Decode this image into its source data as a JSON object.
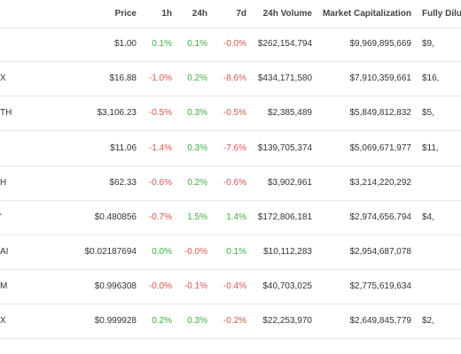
{
  "table": {
    "headers": {
      "price": "Price",
      "h1": "1h",
      "h24": "24h",
      "d7": "7d",
      "volume": "24h Volume",
      "mcap": "Market Capitalization",
      "fdv": "Fully Dilute"
    },
    "rows": [
      {
        "name": "",
        "price": "$1.00",
        "h1": "0.1%",
        "h24": "0.1%",
        "d7": "-0.0%",
        "volume": "$262,154,794",
        "mcap": "$9,969,895,669",
        "fdv": "$9,"
      },
      {
        "name": "X",
        "price": "$16.88",
        "h1": "-1.0%",
        "h24": "0.2%",
        "d7": "-8.6%",
        "volume": "$434,171,580",
        "mcap": "$7,910,359,661",
        "fdv": "$16,"
      },
      {
        "name": "TH",
        "price": "$3,106.23",
        "h1": "-0.5%",
        "h24": "0.3%",
        "d7": "-0.5%",
        "volume": "$2,385,489",
        "mcap": "$5,849,812,832",
        "fdv": "$5,"
      },
      {
        "name": "",
        "price": "$11.06",
        "h1": "-1.4%",
        "h24": "0.3%",
        "d7": "-7.6%",
        "volume": "$139,705,374",
        "mcap": "$5,069,671,977",
        "fdv": "$11,"
      },
      {
        "name": "H",
        "price": "$62.33",
        "h1": "-0.6%",
        "h24": "0.2%",
        "d7": "-0.6%",
        "volume": "$3,902,961",
        "mcap": "$3,214,220,292",
        "fdv": ""
      },
      {
        "name": "'",
        "price": "$0.480856",
        "h1": "-0.7%",
        "h24": "1.5%",
        "d7": "1.4%",
        "volume": "$172,806,181",
        "mcap": "$2,974,656,794",
        "fdv": "$4,"
      },
      {
        "name": "AI",
        "price": "$0.02187694",
        "h1": "0.0%",
        "h24": "-0.0%",
        "d7": "0.1%",
        "volume": "$10,112,283",
        "mcap": "$2,954,687,078",
        "fdv": ""
      },
      {
        "name": "M",
        "price": "$0.996308",
        "h1": "-0.0%",
        "h24": "-0.1%",
        "d7": "-0.4%",
        "volume": "$40,703,025",
        "mcap": "$2,775,619,634",
        "fdv": ""
      },
      {
        "name": "X",
        "price": "$0.999928",
        "h1": "0.2%",
        "h24": "0.3%",
        "d7": "-0.2%",
        "volume": "$22,253,970",
        "mcap": "$2,649,845,779",
        "fdv": "$2,"
      }
    ]
  },
  "colors": {
    "positive": "#3fae3f",
    "negative": "#d9534f"
  }
}
